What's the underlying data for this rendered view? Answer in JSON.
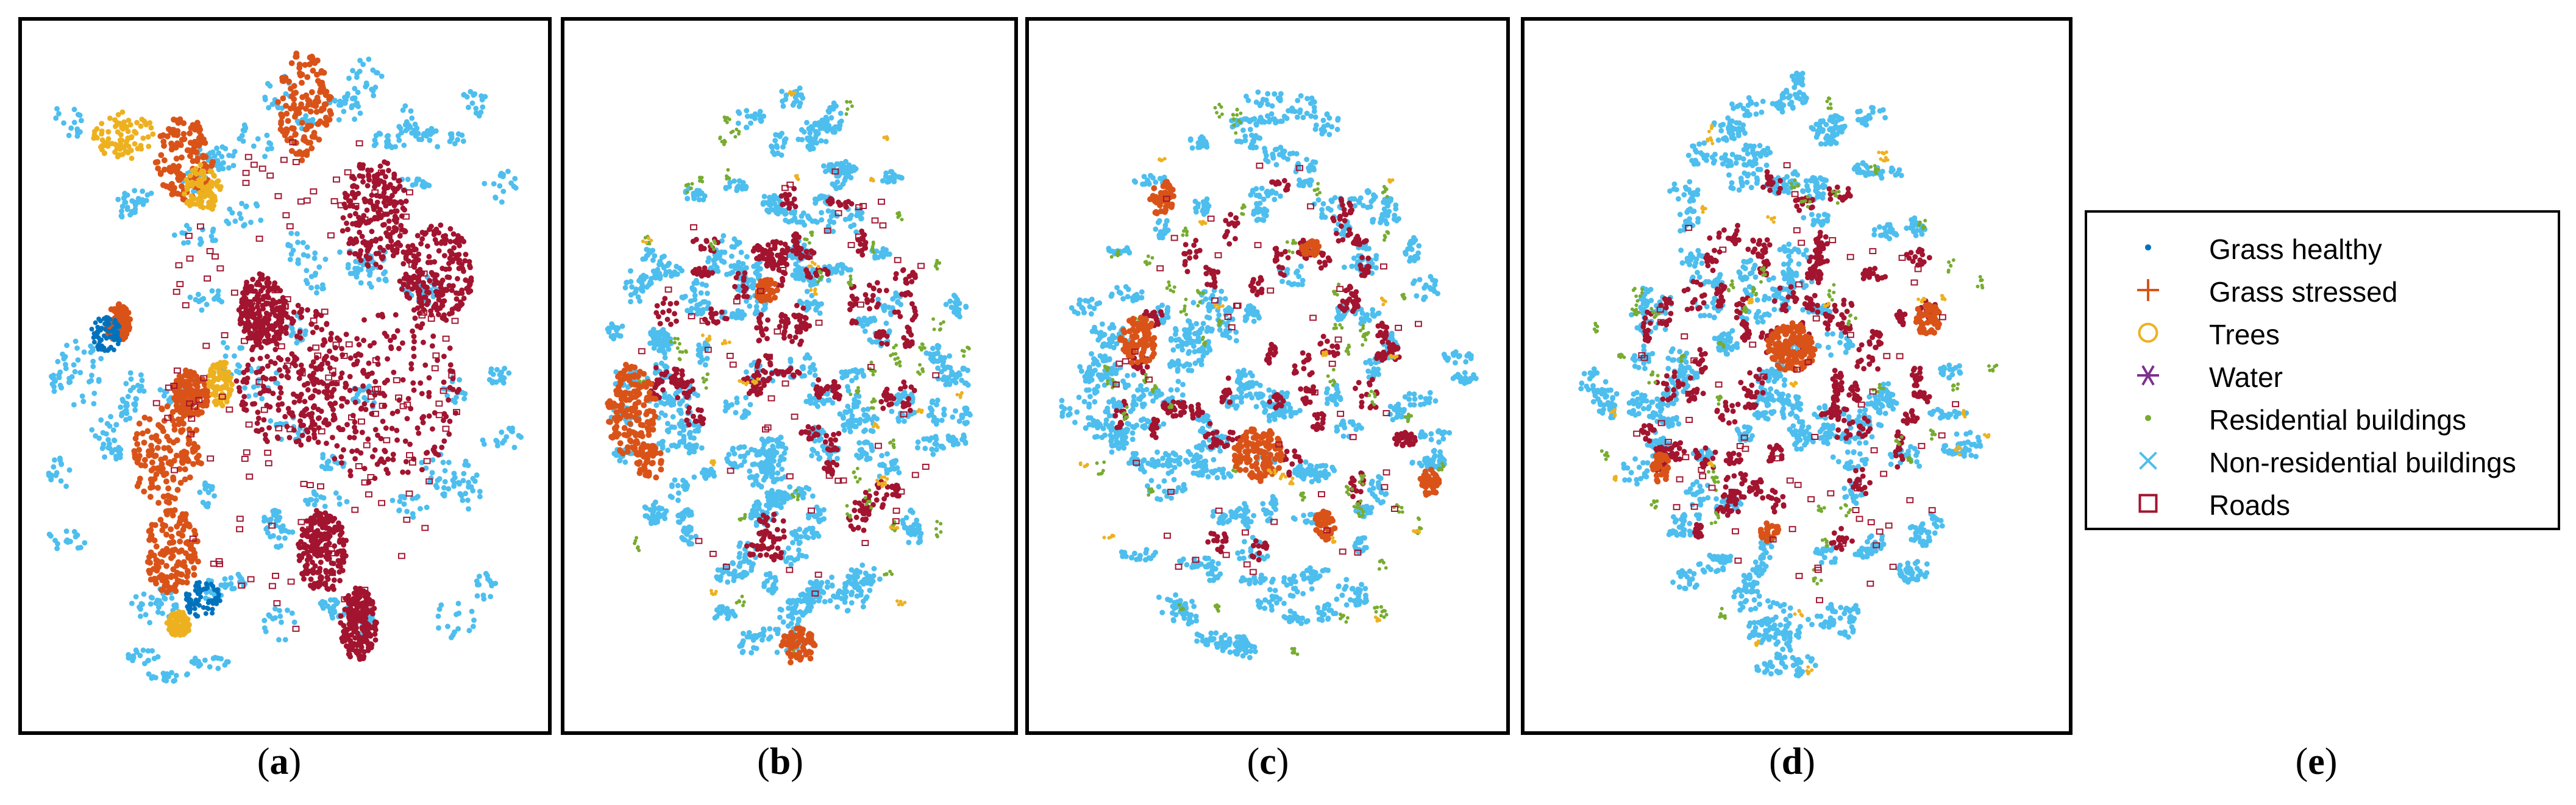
{
  "panels": [
    {
      "label_open": "(",
      "label": "a",
      "label_close": ")"
    },
    {
      "label_open": "(",
      "label": "b",
      "label_close": ")"
    },
    {
      "label_open": "(",
      "label": "c",
      "label_close": ")"
    },
    {
      "label_open": "(",
      "label": "d",
      "label_close": ")"
    },
    {
      "label_open": "(",
      "label": "e",
      "label_close": ")"
    }
  ],
  "legend": [
    {
      "label": "Grass healthy",
      "marker": "dot",
      "color": "#0072BD"
    },
    {
      "label": "Grass stressed",
      "marker": "plus",
      "color": "#D95319"
    },
    {
      "label": "Trees",
      "marker": "circle",
      "color": "#EDB120"
    },
    {
      "label": "Water",
      "marker": "asterisk",
      "color": "#7E2F8E"
    },
    {
      "label": "Residential buildings",
      "marker": "dot",
      "color": "#77AC30"
    },
    {
      "label": "Non-residential buildings",
      "marker": "x",
      "color": "#4DBEEE"
    },
    {
      "label": "Roads",
      "marker": "square",
      "color": "#A2142F"
    }
  ],
  "chart_data": [
    {
      "type": "scatter",
      "caption": "(a)",
      "series": [
        "Grass healthy",
        "Grass stressed",
        "Trees",
        "Water",
        "Residential buildings",
        "Non-residential buildings",
        "Roads"
      ]
    },
    {
      "type": "scatter",
      "caption": "(b)",
      "series": [
        "Grass healthy",
        "Grass stressed",
        "Trees",
        "Water",
        "Residential buildings",
        "Non-residential buildings",
        "Roads"
      ]
    },
    {
      "type": "scatter",
      "caption": "(c)",
      "series": [
        "Grass healthy",
        "Grass stressed",
        "Trees",
        "Water",
        "Residential buildings",
        "Non-residential buildings",
        "Roads"
      ]
    },
    {
      "type": "scatter",
      "caption": "(d)",
      "series": [
        "Grass healthy",
        "Grass stressed",
        "Trees",
        "Water",
        "Residential buildings",
        "Non-residential buildings",
        "Roads"
      ]
    }
  ]
}
